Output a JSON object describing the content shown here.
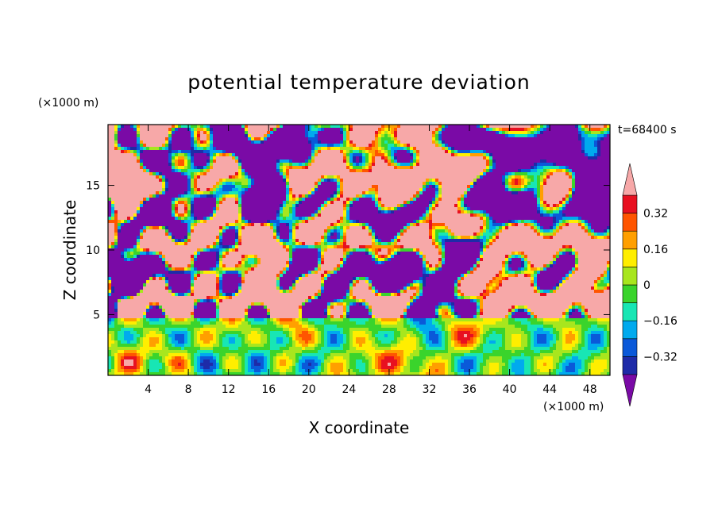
{
  "chart_data": {
    "type": "heatmap",
    "title": "potential temperature deviation",
    "xlabel": "X coordinate",
    "ylabel": "Z coordinate",
    "x_unit": "(×1000 m)",
    "y_unit": "(×1000 m)",
    "time_label": "t=68400 s",
    "xlim": [
      0,
      50
    ],
    "ylim": [
      0.3,
      19.7
    ],
    "x_ticks": [
      4,
      8,
      12,
      16,
      20,
      24,
      28,
      32,
      36,
      40,
      44,
      48
    ],
    "y_ticks": [
      5,
      10,
      15
    ],
    "colorbar": {
      "levels": [
        -0.4,
        -0.32,
        -0.24,
        -0.16,
        -0.08,
        0,
        0.08,
        0.16,
        0.24,
        0.32,
        0.4
      ],
      "tick_labels": [
        {
          "value": 0.32,
          "label": "0.32"
        },
        {
          "value": 0.16,
          "label": "0.16"
        },
        {
          "value": 0,
          "label": "0"
        },
        {
          "value": -0.16,
          "label": "−0.16"
        },
        {
          "value": -0.32,
          "label": "−0.32"
        }
      ],
      "colors": [
        "#7a0aa6",
        "#1e2ba8",
        "#0a59d9",
        "#00aaee",
        "#18e6b4",
        "#3ad42c",
        "#a8e61e",
        "#ffee00",
        "#ff9f00",
        "#ff5500",
        "#e81020",
        "#f7a8a8"
      ],
      "extend": "both"
    },
    "regions": [
      {
        "name": "lower-layer",
        "z_range": [
          0.3,
          4.7
        ],
        "description_value": "mixed -0.3 to 0.4"
      },
      {
        "name": "upper-layer",
        "z_range": [
          4.7,
          19.7
        ],
        "description_value": "alternating >0.4 and <-0.4"
      }
    ]
  }
}
